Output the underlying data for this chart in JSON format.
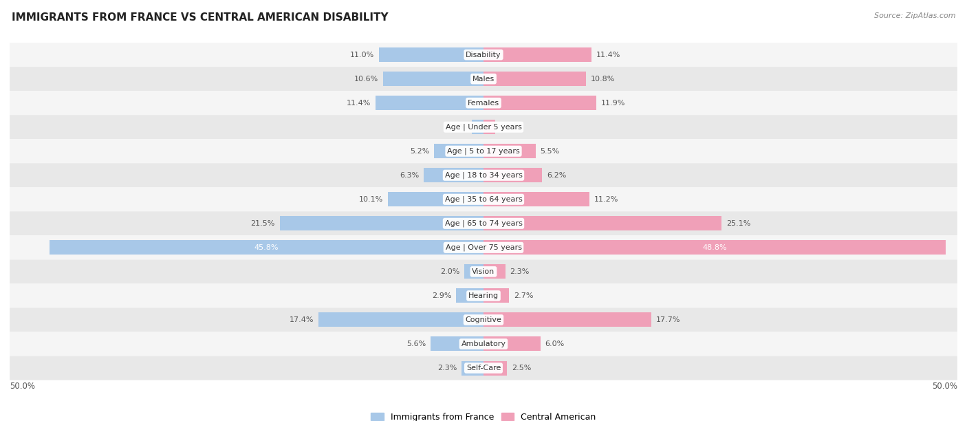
{
  "title": "IMMIGRANTS FROM FRANCE VS CENTRAL AMERICAN DISABILITY",
  "source": "Source: ZipAtlas.com",
  "categories": [
    "Disability",
    "Males",
    "Females",
    "Age | Under 5 years",
    "Age | 5 to 17 years",
    "Age | 18 to 34 years",
    "Age | 35 to 64 years",
    "Age | 65 to 74 years",
    "Age | Over 75 years",
    "Vision",
    "Hearing",
    "Cognitive",
    "Ambulatory",
    "Self-Care"
  ],
  "france_values": [
    11.0,
    10.6,
    11.4,
    1.2,
    5.2,
    6.3,
    10.1,
    21.5,
    45.8,
    2.0,
    2.9,
    17.4,
    5.6,
    2.3
  ],
  "central_values": [
    11.4,
    10.8,
    11.9,
    1.2,
    5.5,
    6.2,
    11.2,
    25.1,
    48.8,
    2.3,
    2.7,
    17.7,
    6.0,
    2.5
  ],
  "france_color": "#a8c8e8",
  "central_color": "#f0a0b8",
  "bar_height": 0.6,
  "max_val": 50.0,
  "row_colors": [
    "#f5f5f5",
    "#e8e8e8"
  ],
  "legend_france": "Immigrants from France",
  "legend_central": "Central American"
}
